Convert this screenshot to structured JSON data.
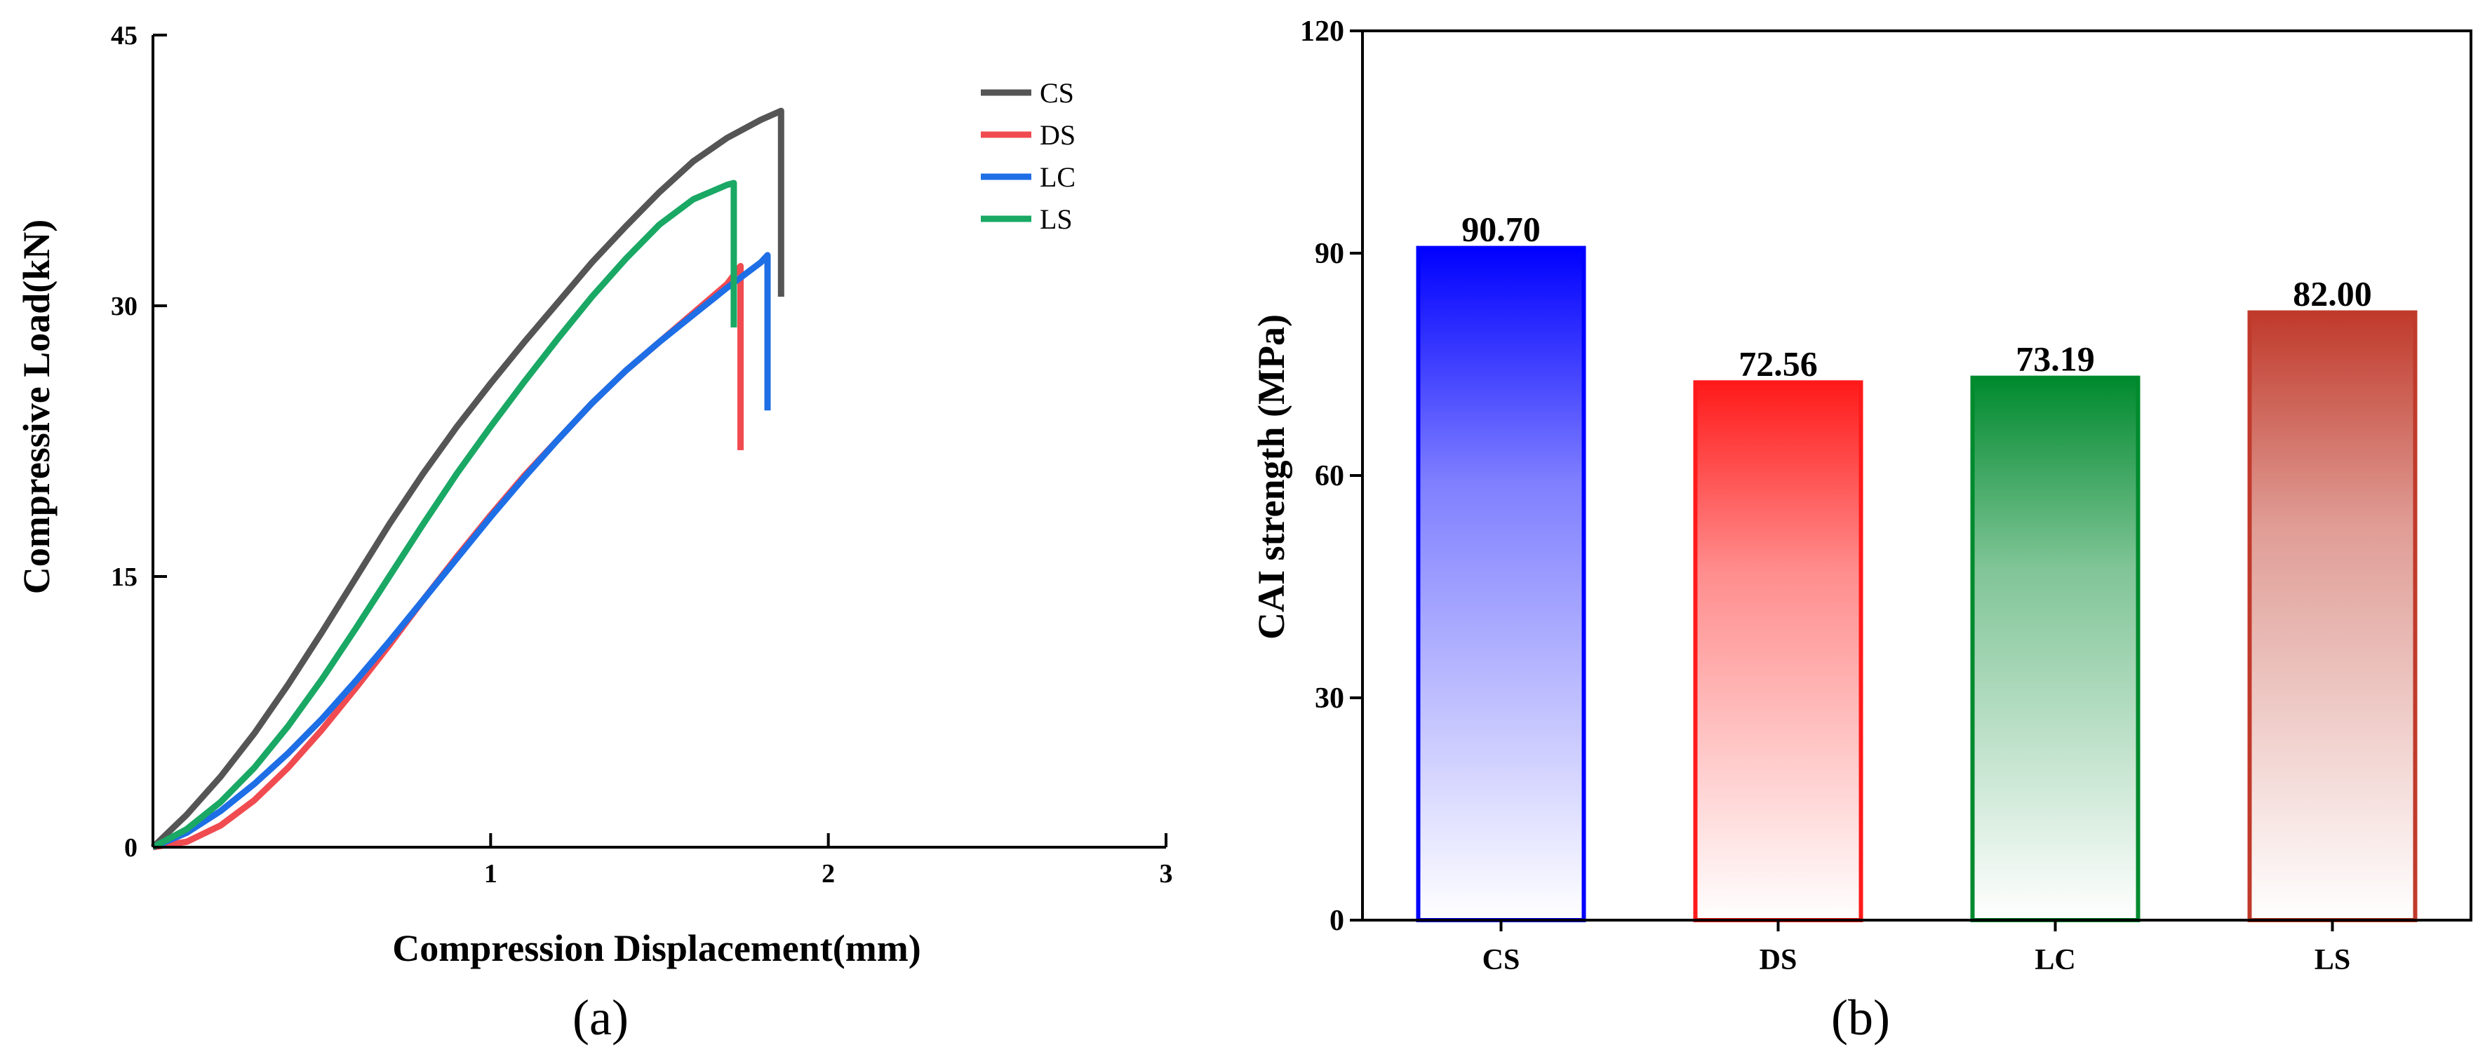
{
  "chart_data": [
    {
      "type": "line",
      "panel_label": "(a)",
      "xlabel": "Compression Displacement(mm)",
      "ylabel": "Compressive Load(kN)",
      "xlim": [
        0,
        3
      ],
      "ylim": [
        0,
        45
      ],
      "xticks": [
        1,
        2,
        3
      ],
      "xtick_labels": [
        "1",
        "2",
        "3"
      ],
      "yticks": [
        0,
        15,
        30,
        45
      ],
      "ytick_labels": [
        "0",
        "15",
        "30",
        "45"
      ],
      "legend": [
        "CS",
        "DS",
        "LC",
        "LS"
      ],
      "legend_position": "top-right",
      "series": [
        {
          "name": "CS",
          "color": "#555555",
          "x": [
            0,
            0.1,
            0.2,
            0.3,
            0.4,
            0.5,
            0.6,
            0.7,
            0.8,
            0.9,
            1.0,
            1.1,
            1.2,
            1.3,
            1.4,
            1.5,
            1.6,
            1.7,
            1.8,
            1.86,
            1.86
          ],
          "y": [
            0,
            1.8,
            3.9,
            6.3,
            9.0,
            11.9,
            14.9,
            17.9,
            20.7,
            23.3,
            25.7,
            28.0,
            30.2,
            32.4,
            34.4,
            36.3,
            38.0,
            39.3,
            40.3,
            40.8,
            30.5
          ]
        },
        {
          "name": "DS",
          "color": "#f04b50",
          "x": [
            0,
            0.1,
            0.2,
            0.3,
            0.4,
            0.5,
            0.6,
            0.7,
            0.8,
            0.9,
            1.0,
            1.1,
            1.2,
            1.3,
            1.4,
            1.5,
            1.6,
            1.7,
            1.74,
            1.74
          ],
          "y": [
            0,
            0.3,
            1.2,
            2.6,
            4.4,
            6.5,
            8.8,
            11.2,
            13.7,
            16.1,
            18.4,
            20.6,
            22.6,
            24.6,
            26.4,
            28.0,
            29.6,
            31.2,
            32.2,
            22.0
          ]
        },
        {
          "name": "LC",
          "color": "#1e6ee6",
          "x": [
            0,
            0.1,
            0.2,
            0.3,
            0.4,
            0.5,
            0.6,
            0.7,
            0.8,
            0.9,
            1.0,
            1.1,
            1.2,
            1.3,
            1.4,
            1.5,
            1.6,
            1.7,
            1.8,
            1.82,
            1.82
          ],
          "y": [
            0,
            0.8,
            2.0,
            3.5,
            5.2,
            7.1,
            9.2,
            11.4,
            13.7,
            16.0,
            18.3,
            20.5,
            22.6,
            24.6,
            26.4,
            28.0,
            29.5,
            31.0,
            32.4,
            32.8,
            24.2
          ]
        },
        {
          "name": "LS",
          "color": "#1aa865",
          "x": [
            0,
            0.1,
            0.2,
            0.3,
            0.4,
            0.5,
            0.6,
            0.7,
            0.8,
            0.9,
            1.0,
            1.1,
            1.2,
            1.3,
            1.4,
            1.5,
            1.6,
            1.7,
            1.72,
            1.72
          ],
          "y": [
            0,
            1.0,
            2.5,
            4.4,
            6.7,
            9.3,
            12.1,
            15.0,
            17.9,
            20.7,
            23.3,
            25.8,
            28.2,
            30.5,
            32.6,
            34.5,
            35.9,
            36.7,
            36.8,
            28.8
          ]
        }
      ]
    },
    {
      "type": "bar",
      "panel_label": "(b)",
      "xlabel": "",
      "ylabel": "CAI strength (MPa)",
      "ylim": [
        0,
        120
      ],
      "yticks": [
        0,
        30,
        60,
        90,
        120
      ],
      "ytick_labels": [
        "0",
        "30",
        "60",
        "90",
        "120"
      ],
      "categories": [
        "CS",
        "DS",
        "LC",
        "LS"
      ],
      "values": [
        90.7,
        72.56,
        73.19,
        82.0
      ],
      "value_labels": [
        "90.70",
        "72.56",
        "73.19",
        "82.00"
      ],
      "colors": [
        "#0000ff",
        "#ff1a1a",
        "#008a2e",
        "#c03a2b"
      ]
    }
  ]
}
